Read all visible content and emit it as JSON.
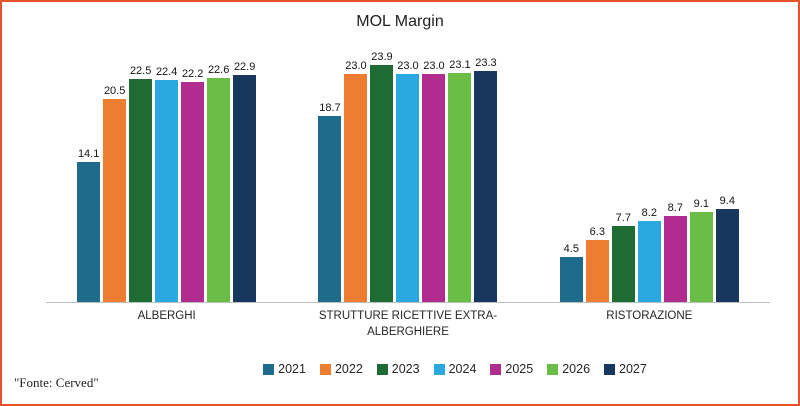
{
  "title": "MOL Margin",
  "footer_source": "\"Fonte: Cerved\"",
  "border_color": "#E4532B",
  "axis_color": "#BFBFBF",
  "chart_data": {
    "type": "bar",
    "title": "MOL Margin",
    "categories": [
      "ALBERGHI",
      "STRUTTURE RICETTIVE EXTRA-ALBERGHIERE",
      "RISTORAZIONE"
    ],
    "series": [
      {
        "name": "2021",
        "color": "#1F6B8C",
        "values": [
          14.1,
          18.7,
          4.5
        ]
      },
      {
        "name": "2022",
        "color": "#ED7D31",
        "values": [
          20.5,
          23.0,
          6.3
        ]
      },
      {
        "name": "2023",
        "color": "#1E6B34",
        "values": [
          22.5,
          23.9,
          7.7
        ]
      },
      {
        "name": "2024",
        "color": "#29A9E0",
        "values": [
          22.4,
          23.0,
          8.2
        ]
      },
      {
        "name": "2025",
        "color": "#B02C8F",
        "values": [
          22.2,
          23.0,
          8.7
        ]
      },
      {
        "name": "2026",
        "color": "#6ABD45",
        "values": [
          22.6,
          23.1,
          9.1
        ]
      },
      {
        "name": "2027",
        "color": "#17375E",
        "values": [
          22.9,
          23.3,
          9.4
        ]
      }
    ],
    "value_labels": true,
    "value_label_format": "one_decimal",
    "ylim": [
      0,
      26
    ],
    "grid": false,
    "legend_position": "bottom"
  }
}
